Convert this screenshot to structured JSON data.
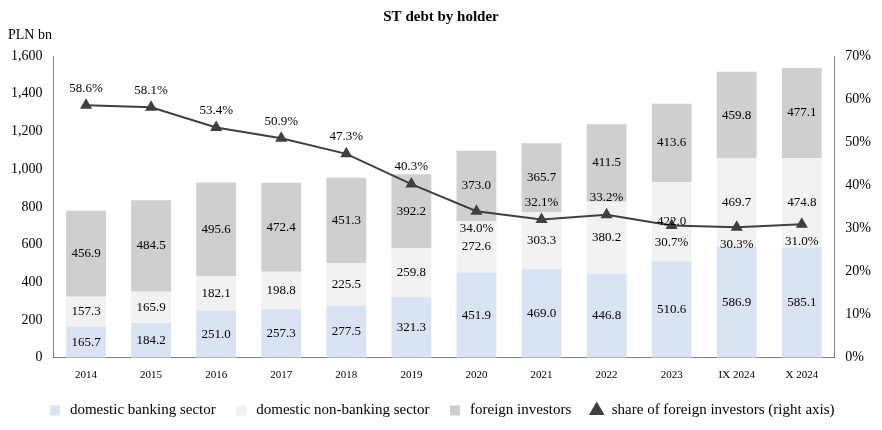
{
  "chart_data": {
    "type": "bar",
    "title": "ST debt by holder",
    "ylabel": "PLN bn",
    "stacked": true,
    "grid": false,
    "legend": "bottom",
    "data_labels": true,
    "categories": [
      "2014",
      "2015",
      "2016",
      "2017",
      "2018",
      "2019",
      "2020",
      "2021",
      "2022",
      "2023",
      "IX 2024",
      "X 2024"
    ],
    "series": [
      {
        "name": "domestic banking sector",
        "color": "#dae3f3",
        "values": [
          165.7,
          184.2,
          251.0,
          257.3,
          277.5,
          321.3,
          451.9,
          469.0,
          446.8,
          510.6,
          586.9,
          585.1
        ],
        "value_labels": [
          "165.7",
          "184.2",
          "251.0",
          "257.3",
          "277.5",
          "321.3",
          "451.9",
          "469.0",
          "446.8",
          "510.6",
          "586.9",
          "585.1"
        ]
      },
      {
        "name": "domestic non-banking sector",
        "color": "#f2f2f2",
        "values": [
          157.3,
          165.9,
          182.1,
          198.8,
          225.5,
          259.8,
          272.6,
          303.3,
          380.2,
          422.0,
          469.7,
          474.8
        ],
        "value_labels": [
          "157.3",
          "165.9",
          "182.1",
          "198.8",
          "225.5",
          "259.8",
          "272.6",
          "303.3",
          "380.2",
          "422.0",
          "469.7",
          "474.8"
        ]
      },
      {
        "name": "foreign investors",
        "color": "#d0cece",
        "values": [
          456.9,
          484.5,
          495.6,
          472.4,
          451.3,
          392.2,
          373.0,
          365.7,
          411.5,
          413.6,
          459.8,
          477.1
        ],
        "value_labels": [
          "456.9",
          "484.5",
          "495.6",
          "472.4",
          "451.3",
          "392.2",
          "373.0",
          "365.7",
          "411.5",
          "413.6",
          "459.8",
          "477.1"
        ]
      },
      {
        "name": "share of foreign investors (right axis)",
        "type": "line",
        "axis": "y2",
        "color": "#404040",
        "marker": "triangle",
        "line_style": "solid",
        "values": [
          58.6,
          58.1,
          53.4,
          50.9,
          47.3,
          40.3,
          34.0,
          32.1,
          33.2,
          30.7,
          30.3,
          31.0
        ],
        "value_labels": [
          "58.6%",
          "58.1%",
          "53.4%",
          "50.9%",
          "47.3%",
          "40.3%",
          "34.0%",
          "32.1%",
          "33.2%",
          "30.7%",
          "30.3%",
          "31.0%"
        ]
      }
    ],
    "ylim": [
      0,
      1600
    ],
    "yticks": [
      0,
      200,
      400,
      600,
      800,
      {
        "value": 1000,
        "label": "1,000"
      },
      {
        "value": 1200,
        "label": "1,200"
      },
      {
        "value": 1400,
        "label": "1,400"
      },
      {
        "value": 1600,
        "label": "1,600"
      }
    ],
    "y2lim": [
      0,
      70
    ],
    "y2ticks": [
      {
        "value": 0,
        "label": "0%"
      },
      {
        "value": 10,
        "label": "10%"
      },
      {
        "value": 20,
        "label": "20%"
      },
      {
        "value": 30,
        "label": "30%"
      },
      {
        "value": 40,
        "label": "40%"
      },
      {
        "value": 50,
        "label": "50%"
      },
      {
        "value": 60,
        "label": "60%"
      },
      {
        "value": 70,
        "label": "70%"
      }
    ]
  }
}
